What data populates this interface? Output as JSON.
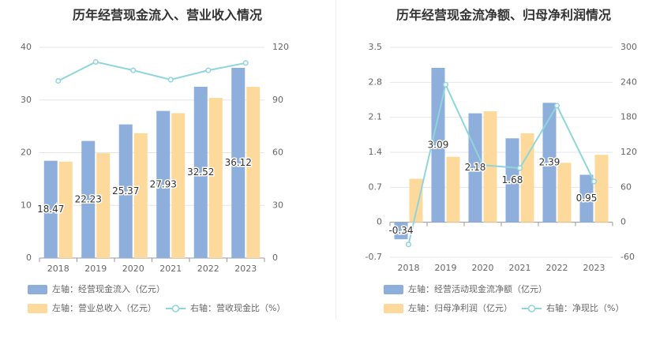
{
  "chart_data": [
    {
      "type": "bar",
      "title": "历年经营现金流入、营业收入情况",
      "categories": [
        "2018",
        "2019",
        "2020",
        "2021",
        "2022",
        "2023"
      ],
      "series": [
        {
          "name": "左轴：经营现金流入（亿元）",
          "axis": "left",
          "type": "bar",
          "color": "#8eaedc",
          "values": [
            18.47,
            22.23,
            25.37,
            27.93,
            32.52,
            36.12
          ],
          "labels": [
            "18.47",
            "22.23",
            "25.37",
            "27.93",
            "32.52",
            "36.12"
          ]
        },
        {
          "name": "左轴：营业总收入（亿元）",
          "axis": "left",
          "type": "bar",
          "color": "#fdd99b",
          "values": [
            18.3,
            19.9,
            23.7,
            27.5,
            30.4,
            32.5
          ]
        },
        {
          "name": "右轴：营收现金比（%）",
          "axis": "right",
          "type": "line",
          "color": "#8fd5dc",
          "values": [
            100.9,
            111.7,
            106.9,
            101.6,
            106.9,
            111.1
          ]
        }
      ],
      "left_axis": {
        "min": 0,
        "max": 40,
        "ticks": [
          "0",
          "10",
          "20",
          "30",
          "40"
        ]
      },
      "right_axis": {
        "min": 0,
        "max": 120,
        "ticks": [
          "0",
          "30",
          "60",
          "90",
          "120"
        ]
      },
      "grid": true,
      "legend_position": "bottom-left"
    },
    {
      "type": "bar",
      "title": "历年经营现金流净额、归母净利润情况",
      "categories": [
        "2018",
        "2019",
        "2020",
        "2021",
        "2022",
        "2023"
      ],
      "series": [
        {
          "name": "左轴：经营活动现金流净额（亿元）",
          "axis": "left",
          "type": "bar",
          "color": "#8eaedc",
          "values": [
            -0.34,
            3.09,
            2.18,
            1.68,
            2.39,
            0.95
          ],
          "labels": [
            "-0.34",
            "3.09",
            "2.18",
            "1.68",
            "2.39",
            "0.95"
          ]
        },
        {
          "name": "左轴：归母净利润（亿元）",
          "axis": "left",
          "type": "bar",
          "color": "#fdd99b",
          "values": [
            0.87,
            1.31,
            2.22,
            1.78,
            1.19,
            1.35
          ]
        },
        {
          "name": "右轴：净现比（%）",
          "axis": "right",
          "type": "line",
          "color": "#8fd5dc",
          "values": [
            -38,
            236,
            98,
            93,
            200,
            70
          ]
        }
      ],
      "left_axis": {
        "min": -0.7,
        "max": 3.5,
        "ticks": [
          "-0.7",
          "0",
          "0.7",
          "1.4",
          "2.1",
          "2.8",
          "3.5"
        ]
      },
      "right_axis": {
        "min": -60,
        "max": 300,
        "ticks": [
          "-60",
          "0",
          "60",
          "120",
          "180",
          "240",
          "300"
        ]
      },
      "grid": true,
      "legend_position": "bottom-left"
    }
  ]
}
